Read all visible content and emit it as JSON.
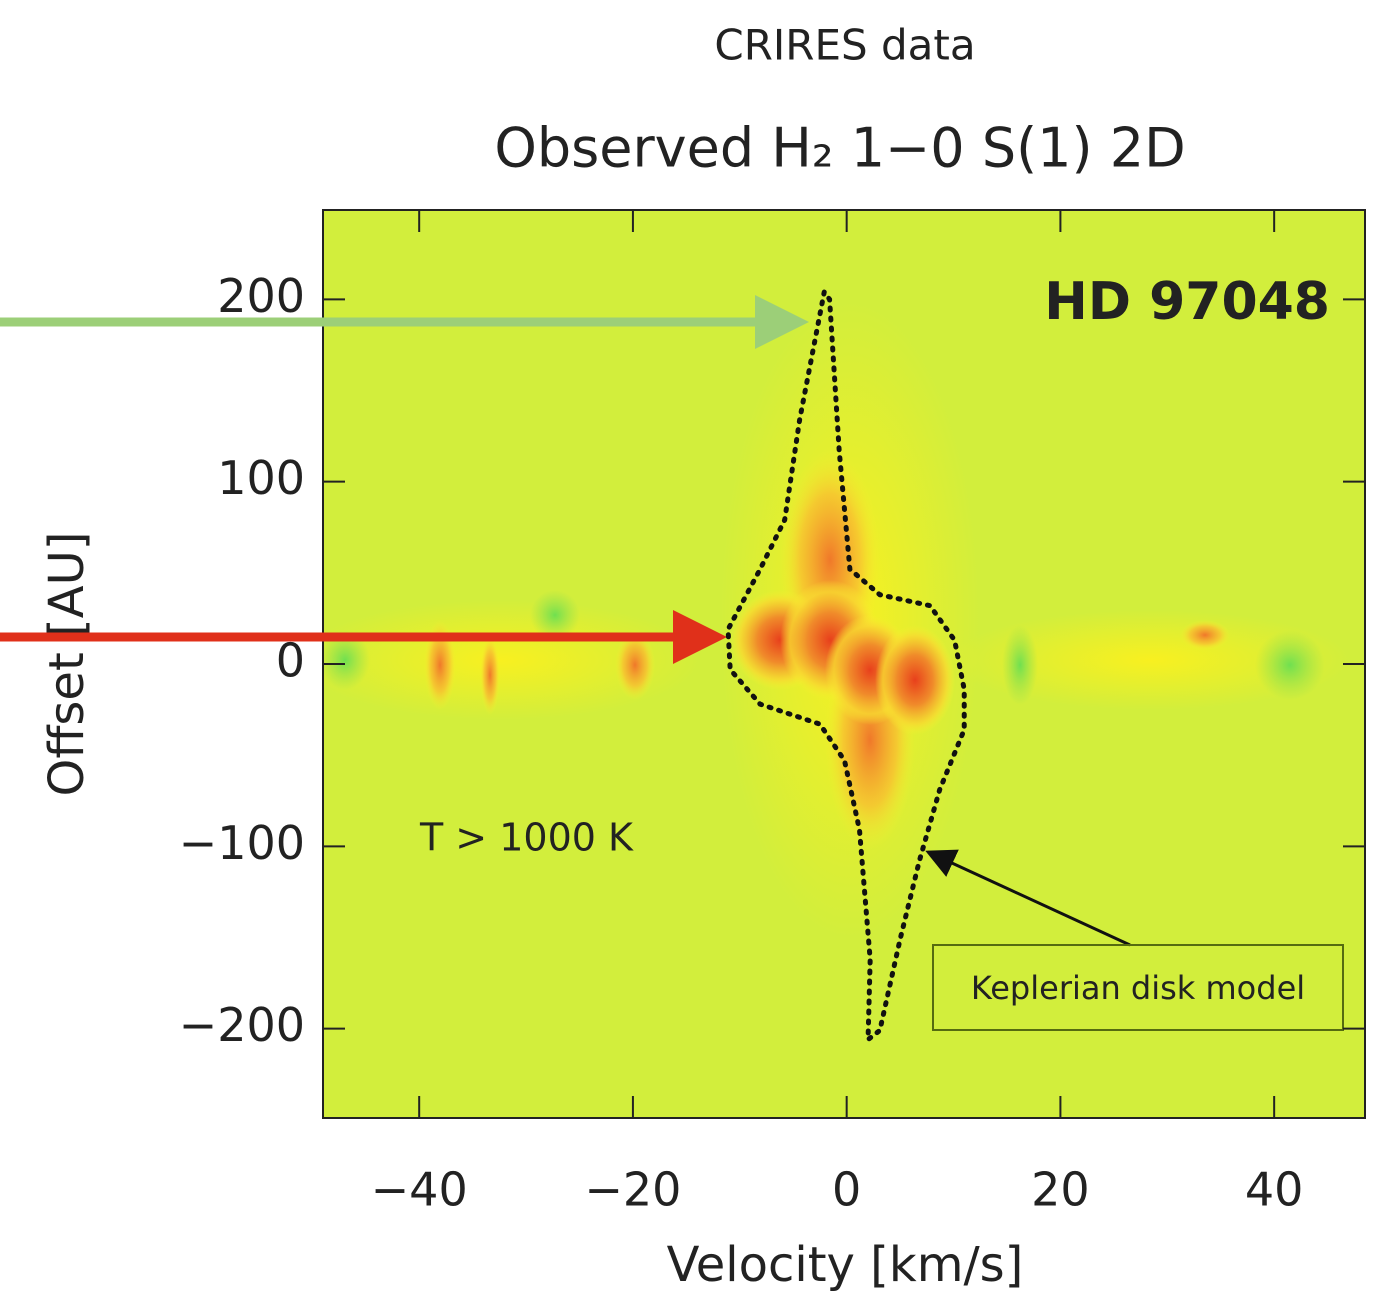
{
  "chart_data": {
    "type": "line",
    "title": "CRIRES data",
    "subtitle": "Observed H₂ 1−0 S(1) 2D",
    "x_label": "Velocity [km/s]",
    "y_label": "Offset [AU]",
    "annotations": [
      "HD 97048",
      "T > 1000 K"
    ],
    "xlim": [
      -49,
      48.5
    ],
    "ylim": [
      -249,
      249
    ],
    "xticks": [
      {
        "value": -40,
        "label": "−40"
      },
      {
        "value": -20,
        "label": "−20"
      },
      0,
      20,
      40
    ],
    "yticks": [
      200,
      100,
      0,
      {
        "value": -100,
        "label": "−100"
      },
      {
        "value": -200,
        "label": "−200"
      }
    ],
    "series": [
      {
        "name": "Keplerian disk model",
        "color": "#111111",
        "x": [
          -2.1,
          -4.4,
          -5.8,
          -8.1,
          -11.1,
          -10.9,
          -8.1,
          -2.5,
          -0.2,
          1.2,
          2.2,
          2.0,
          3.1,
          5.0,
          6.8,
          8.7,
          11.0,
          11.0,
          10.1,
          7.8,
          3.1,
          0.3,
          -0.7,
          -1.6,
          -2.1
        ],
        "values": [
          204,
          134,
          79,
          52,
          19,
          -3,
          -22,
          -33,
          -53,
          -91,
          -162,
          -206,
          -201,
          -151,
          -108,
          -69,
          -36,
          -14,
          13,
          32,
          38,
          52,
          117,
          200,
          204
        ]
      }
    ]
  }
}
